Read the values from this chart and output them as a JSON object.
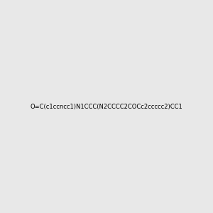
{
  "smiles": "O=C(c1ccncc1)N1CCC(N2CCCC2COCc2ccccc2)CC1",
  "image_size": 300,
  "background_color": "#e8e8e8"
}
